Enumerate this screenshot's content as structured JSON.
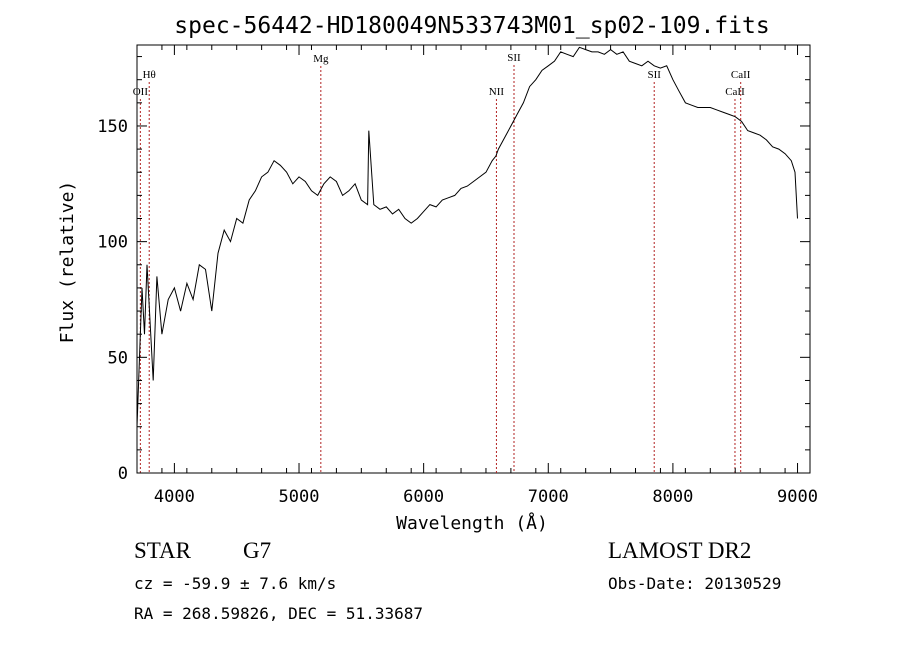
{
  "chart_data": {
    "type": "line",
    "title": "spec-56442-HD180049N533743M01_sp02-109.fits",
    "xlabel": "Wavelength (Å)",
    "ylabel": "Flux (relative)",
    "xlim": [
      3700,
      9100
    ],
    "ylim": [
      0,
      185
    ],
    "xticks": [
      4000,
      5000,
      6000,
      7000,
      8000,
      9000
    ],
    "yticks": [
      0,
      50,
      100,
      150
    ],
    "grid": false,
    "series": [
      {
        "x": [
          3700,
          3720,
          3740,
          3760,
          3780,
          3800,
          3830,
          3860,
          3900,
          3950,
          4000,
          4050,
          4100,
          4150,
          4200,
          4250,
          4300,
          4350,
          4400,
          4450,
          4500,
          4550,
          4600,
          4650,
          4700,
          4750,
          4800,
          4850,
          4900,
          4950,
          5000,
          5050,
          5100,
          5150,
          5200,
          5250,
          5300,
          5350,
          5400,
          5450,
          5500,
          5550,
          5560,
          5600,
          5650,
          5700,
          5750,
          5800,
          5850,
          5900,
          5950,
          6000,
          6050,
          6100,
          6150,
          6200,
          6250,
          6300,
          6350,
          6400,
          6450,
          6500,
          6550,
          6580,
          6600,
          6650,
          6700,
          6750,
          6800,
          6850,
          6900,
          6950,
          7000,
          7050,
          7100,
          7150,
          7200,
          7250,
          7300,
          7350,
          7400,
          7450,
          7500,
          7550,
          7600,
          7650,
          7700,
          7750,
          7800,
          7850,
          7900,
          7950,
          8000,
          8050,
          8100,
          8150,
          8200,
          8250,
          8300,
          8350,
          8400,
          8450,
          8500,
          8550,
          8600,
          8650,
          8700,
          8750,
          8800,
          8850,
          8900,
          8950,
          8980,
          9000
        ],
        "y": [
          20,
          50,
          80,
          60,
          90,
          70,
          40,
          85,
          60,
          75,
          80,
          70,
          82,
          75,
          90,
          88,
          70,
          95,
          105,
          100,
          110,
          108,
          118,
          122,
          128,
          130,
          135,
          133,
          130,
          125,
          128,
          126,
          122,
          120,
          125,
          128,
          126,
          120,
          122,
          125,
          118,
          116,
          148,
          116,
          114,
          115,
          112,
          114,
          110,
          108,
          110,
          113,
          116,
          115,
          118,
          119,
          120,
          123,
          124,
          126,
          128,
          130,
          135,
          137,
          140,
          145,
          150,
          155,
          160,
          167,
          170,
          174,
          176,
          178,
          182,
          181,
          180,
          184,
          183,
          182,
          182,
          181,
          183,
          181,
          182,
          178,
          177,
          176,
          178,
          176,
          175,
          176,
          170,
          165,
          160,
          159,
          158,
          158,
          158,
          157,
          156,
          155,
          154,
          152,
          148,
          147,
          146,
          144,
          141,
          140,
          138,
          135,
          130,
          110
        ],
        "color": "#000000"
      }
    ],
    "annotations": [
      {
        "label": "Hθ",
        "x": 3798
      },
      {
        "label": "OII",
        "x": 3727
      },
      {
        "label": "Mg",
        "x": 5175
      },
      {
        "label": "SII",
        "x": 6725
      },
      {
        "label": "NII",
        "x": 6584
      },
      {
        "label": "SII",
        "x": 7850
      },
      {
        "label": "CaII",
        "x": 8544
      },
      {
        "label": "CaII",
        "x": 8498
      }
    ],
    "line_color": "#b22222"
  },
  "info": {
    "class": "STAR",
    "subclass": "G7",
    "cz": "cz = -59.9 ± 7.6 km/s",
    "radec": "RA = 268.59826, DEC =  51.33687",
    "survey": "LAMOST DR2",
    "obsdate": "Obs-Date: 20130529"
  }
}
